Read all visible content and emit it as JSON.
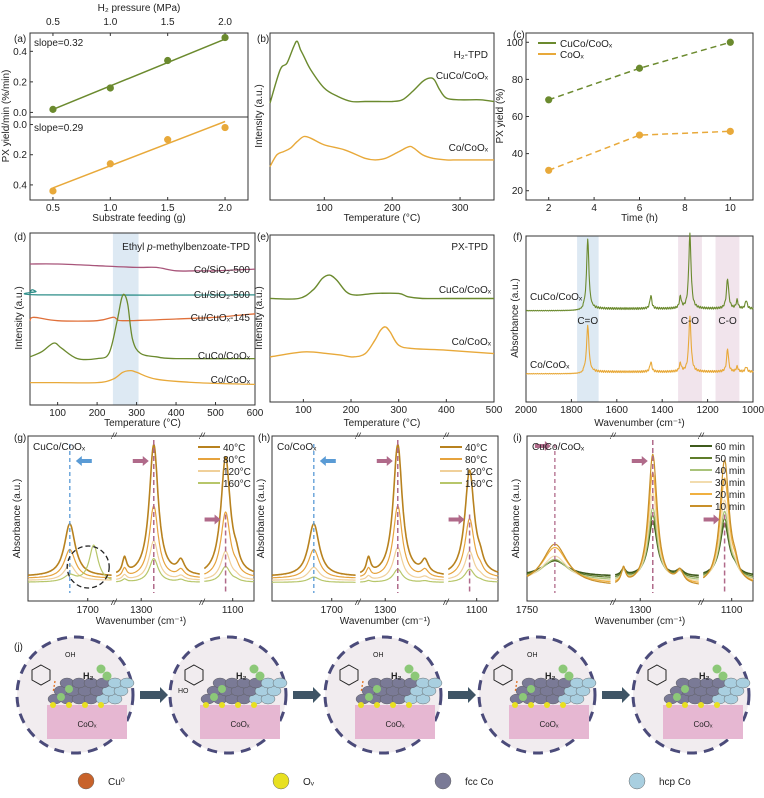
{
  "colors": {
    "olive": "#6b8a2e",
    "orange": "#e8a93a",
    "magenta": "#a8557a",
    "teal": "#2f8f8a",
    "red_orange": "#e0703a",
    "blue_band": "#dde9f3",
    "pink_band": "#f1e4ec",
    "blue_arrow": "#5a9bd5",
    "pink_arrow": "#b06a8a",
    "t40": "#b8821f",
    "t80": "#e6a33e",
    "t120": "#f0d09a",
    "t160": "#b7c66a",
    "m60": "#3f5a1c",
    "m50": "#5f7d2a",
    "m40": "#a9c37a",
    "m30": "#f2dcae",
    "m20": "#f0b040",
    "m10": "#c8902a",
    "coox_pink": "#e6b7d2",
    "circle_bg": "#f1ecef",
    "dash": "#4b4b7a",
    "h2_green": "#8cc878",
    "fcc": "#7a7a96",
    "hcp": "#a9cfe0",
    "cu": "#c8622a",
    "ov": "#e8e020"
  },
  "chart_data": [
    {
      "panel": "(a)",
      "type": "scatter",
      "top_xlabel": "H2 pressure (MPa)",
      "xlabel": "Substrate feeding (g)",
      "ylabel": "PX yield/min (%/min)",
      "x_ticks": [
        "0.5",
        "1.0",
        "1.5",
        "2.0"
      ],
      "upper": {
        "y_ticks": [
          "0.0",
          "0.2",
          "0.4"
        ],
        "ylim": [
          -0.03,
          0.52
        ],
        "annotation": "slope=0.32",
        "x": [
          0.5,
          1.0,
          1.5,
          2.0
        ],
        "y": [
          0.02,
          0.16,
          0.34,
          0.49
        ],
        "fit": [
          [
            0.5,
            0.02
          ],
          [
            2.0,
            0.48
          ]
        ]
      },
      "lower": {
        "y_ticks": [
          "0.0",
          "0.2",
          "0.4"
        ],
        "ylim": [
          0.5,
          -0.05
        ],
        "annotation": "slope=0.29",
        "x": [
          0.5,
          1.0,
          1.5,
          2.0
        ],
        "y": [
          0.44,
          0.26,
          0.1,
          0.02
        ],
        "fit": [
          [
            0.5,
            0.42
          ],
          [
            2.0,
            -0.02
          ]
        ]
      },
      "xlim": [
        0.3,
        2.2
      ]
    },
    {
      "panel": "(b)",
      "type": "line",
      "title": "H2-TPD",
      "xlabel": "Temperature (°C)",
      "ylabel": "Intensity (a.u.)",
      "x_ticks": [
        "100",
        "200",
        "300"
      ],
      "xlim": [
        20,
        350
      ],
      "series": [
        {
          "name": "CuCo/CoOx",
          "x": [
            20,
            35,
            45,
            55,
            60,
            65,
            70,
            80,
            100,
            120,
            140,
            160,
            180,
            200,
            215,
            230,
            245,
            255,
            262,
            270,
            280,
            300,
            330,
            350
          ],
          "y": [
            0.58,
            0.78,
            0.82,
            0.92,
            0.95,
            0.9,
            0.86,
            0.78,
            0.67,
            0.62,
            0.59,
            0.59,
            0.59,
            0.59,
            0.6,
            0.65,
            0.71,
            0.73,
            0.72,
            0.66,
            0.61,
            0.6,
            0.6,
            0.59
          ]
        },
        {
          "name": "Co/CoOx",
          "x": [
            20,
            30,
            40,
            50,
            60,
            70,
            80,
            100,
            130,
            160,
            175,
            190,
            210,
            225,
            232,
            245,
            260,
            280,
            300,
            350
          ],
          "y": [
            0.2,
            0.27,
            0.29,
            0.31,
            0.35,
            0.38,
            0.37,
            0.33,
            0.3,
            0.25,
            0.24,
            0.25,
            0.29,
            0.32,
            0.31,
            0.27,
            0.25,
            0.24,
            0.24,
            0.24
          ]
        }
      ]
    },
    {
      "panel": "(c)",
      "type": "line",
      "xlabel": "Time (h)",
      "ylabel": "PX yield (%)",
      "x_ticks": [
        "2",
        "4",
        "6",
        "8",
        "10"
      ],
      "y_ticks": [
        "20",
        "40",
        "60",
        "80",
        "100"
      ],
      "xlim": [
        1,
        11
      ],
      "ylim": [
        15,
        105
      ],
      "series": [
        {
          "name": "CuCo/CoOx",
          "x": [
            2,
            6,
            10
          ],
          "y": [
            69,
            86,
            100
          ]
        },
        {
          "name": "CoOx",
          "x": [
            2,
            6,
            10
          ],
          "y": [
            31,
            50,
            52
          ]
        }
      ]
    },
    {
      "panel": "(d)",
      "type": "line",
      "title": "Ethyl p-methylbenzoate-TPD",
      "xlabel": "Temperature (°C)",
      "ylabel": "Intensity (a.u.)",
      "x_ticks": [
        "100",
        "200",
        "300",
        "400",
        "500",
        "600"
      ],
      "xlim": [
        30,
        600
      ],
      "shaded_band": [
        240,
        305
      ],
      "series": [
        {
          "name": "Co/SiO2-500",
          "x": [
            30,
            100,
            200,
            300,
            350,
            400,
            450,
            500,
            600
          ],
          "y": [
            0.82,
            0.82,
            0.81,
            0.8,
            0.8,
            0.78,
            0.78,
            0.78,
            0.79
          ]
        },
        {
          "name": "Cu/SiO2-500",
          "x": [
            30,
            35,
            45,
            60,
            600
          ],
          "y": [
            0.65,
            0.67,
            0.66,
            0.64,
            0.64
          ]
        },
        {
          "name": "Cu/CuOx-145",
          "x": [
            30,
            40,
            100,
            200,
            240,
            250,
            270,
            400,
            500,
            600
          ],
          "y": [
            0.49,
            0.51,
            0.49,
            0.49,
            0.51,
            0.5,
            0.49,
            0.5,
            0.51,
            0.53
          ]
        },
        {
          "name": "CuCo/CoOx",
          "x": [
            30,
            60,
            90,
            110,
            150,
            200,
            230,
            250,
            262,
            270,
            278,
            290,
            310,
            350,
            400,
            600
          ],
          "y": [
            0.28,
            0.31,
            0.36,
            0.33,
            0.27,
            0.27,
            0.3,
            0.48,
            0.62,
            0.64,
            0.58,
            0.38,
            0.3,
            0.28,
            0.27,
            0.27
          ]
        },
        {
          "name": "Co/CoOx",
          "x": [
            30,
            100,
            200,
            240,
            265,
            285,
            300,
            350,
            450,
            600
          ],
          "y": [
            0.13,
            0.13,
            0.13,
            0.15,
            0.19,
            0.2,
            0.19,
            0.15,
            0.13,
            0.12
          ]
        }
      ]
    },
    {
      "panel": "(e)",
      "type": "line",
      "title": "PX-TPD",
      "xlabel": "Temperature (°C)",
      "ylabel": "Intensity (a.u.)",
      "x_ticks": [
        "100",
        "200",
        "300",
        "400",
        "500"
      ],
      "xlim": [
        30,
        500
      ],
      "series": [
        {
          "name": "CuCo/CoOx",
          "x": [
            30,
            90,
            120,
            140,
            155,
            170,
            190,
            210,
            250,
            300,
            320,
            350,
            400,
            450,
            500
          ],
          "y": [
            0.62,
            0.62,
            0.67,
            0.74,
            0.76,
            0.73,
            0.66,
            0.64,
            0.65,
            0.65,
            0.63,
            0.62,
            0.62,
            0.62,
            0.62
          ]
        },
        {
          "name": "Co/CoOx",
          "x": [
            30,
            100,
            150,
            180,
            205,
            230,
            250,
            262,
            272,
            282,
            300,
            330,
            400,
            500
          ],
          "y": [
            0.27,
            0.3,
            0.29,
            0.28,
            0.27,
            0.29,
            0.37,
            0.43,
            0.45,
            0.42,
            0.34,
            0.32,
            0.31,
            0.29
          ]
        }
      ]
    },
    {
      "panel": "(f)",
      "type": "line",
      "xlabel": "Wavenumber (cm-1)",
      "ylabel": "Absorbance (a.u.)",
      "x_ticks": [
        "2000",
        "1800",
        "1600",
        "1400",
        "1200",
        "1000"
      ],
      "xlim": [
        2000,
        1000
      ],
      "bands": [
        {
          "label": "C=O",
          "range": [
            1775,
            1680
          ]
        },
        {
          "label": "C-O",
          "range": [
            1330,
            1225
          ]
        },
        {
          "label": "C-O",
          "range": [
            1165,
            1060
          ]
        }
      ],
      "series": [
        {
          "name": "CuCo/CoOx",
          "peaks": [
            [
              1728,
              0.42
            ],
            [
              1278,
              0.45
            ],
            [
              1112,
              0.18
            ],
            [
              1450,
              0.08
            ],
            [
              1320,
              0.07
            ],
            [
              1070,
              0.05
            ],
            [
              1030,
              0.05
            ]
          ],
          "baseline": 0.55
        },
        {
          "name": "Co/CoOx",
          "peaks": [
            [
              1728,
              0.28
            ],
            [
              1278,
              0.33
            ],
            [
              1112,
              0.14
            ],
            [
              1450,
              0.06
            ],
            [
              1320,
              0.05
            ],
            [
              1070,
              0.03
            ],
            [
              1030,
              0.03
            ]
          ],
          "baseline": 0.17
        }
      ]
    },
    {
      "panel": "(g)",
      "type": "line",
      "label": "CuCo/CoOx",
      "xlabel": "Wavenumber (cm-1)",
      "ylabel": "Absorbance (a.u.)",
      "x_ticks": [
        "1700",
        "1300",
        "1100"
      ],
      "legend": [
        "40°C",
        "80°C",
        "120°C",
        "160°C"
      ],
      "peak_heights": {
        "1730": [
          0.9,
          0.5,
          0.22,
          0.12
        ],
        "1270": [
          1.0,
          0.55,
          0.3,
          0.18
        ],
        "1110": [
          0.4,
          0.22,
          0.12,
          0.05
        ]
      },
      "annotation": "dashed circle ~1690 cm-1 (160°C shoulder)"
    },
    {
      "panel": "(h)",
      "type": "line",
      "label": "Co/CoOx",
      "xlabel": "Wavenumber (cm-1)",
      "ylabel": "Absorbance (a.u.)",
      "x_ticks": [
        "1700",
        "1300",
        "1100"
      ],
      "legend": [
        "40°C",
        "80°C",
        "120°C",
        "160°C"
      ],
      "peak_heights": {
        "1730": [
          0.8,
          0.45,
          0.22,
          0.1
        ],
        "1270": [
          1.0,
          0.55,
          0.25,
          0.1
        ],
        "1110": [
          0.4,
          0.22,
          0.1,
          0.04
        ]
      }
    },
    {
      "panel": "(i)",
      "type": "line",
      "label": "CuCo/CoOx",
      "xlabel": "Wavenumber (cm-1)",
      "ylabel": "Absorbance (a.u.)",
      "x_ticks": [
        "1750",
        "1300",
        "1100"
      ],
      "legend": [
        "60 min",
        "50 min",
        "40 min",
        "30 min",
        "20 min",
        "10 min"
      ],
      "peak_heights": {
        "1730": [
          0.4,
          0.45,
          0.52,
          0.62,
          0.8,
          0.95
        ],
        "1270": [
          0.42,
          0.48,
          0.55,
          0.68,
          0.85,
          1.0
        ],
        "1110": [
          0.12,
          0.14,
          0.16,
          0.2,
          0.28,
          0.32
        ]
      }
    }
  ],
  "panel_labels": {
    "a": "(a)",
    "b": "(b)",
    "c": "(c)",
    "d": "(d)",
    "e": "(e)",
    "f": "(f)",
    "g": "(g)",
    "h": "(h)",
    "i": "(i)",
    "j": "(j)"
  },
  "text": {
    "a_top_xlabel": "H₂ pressure (MPa)",
    "a_xlabel": "Substrate feeding (g)",
    "a_ylabel": "PX yield/min (%/min)",
    "a_slope_upper": "slope=0.32",
    "a_slope_lower": "slope=0.29",
    "b_title": "H₂-TPD",
    "b_s1": "CuCo/CoOₓ",
    "b_s2": "Co/CoOₓ",
    "temp_label": "Temperature (°C)",
    "intensity": "Intensity (a.u.)",
    "c_ylabel": "PX yield (%)",
    "c_xlabel": "Time (h)",
    "c_leg1": "CuCo/CoOₓ",
    "c_leg2": "CoOₓ",
    "d_title": "Ethyl p-methylbenzoate-TPD",
    "d_title_pre": "Ethyl ",
    "d_title_it": "p",
    "d_title_post": "-methylbenzoate-TPD",
    "d_s1": "Co/SiO₂-500",
    "d_s2": "Cu/SiO₂-500",
    "d_s3": "Cu/CuOₓ-145",
    "d_s4": "CuCo/CoOₓ",
    "d_s5": "Co/CoOₓ",
    "e_title": "PX-TPD",
    "e_s1": "CuCo/CoOₓ",
    "e_s2": "Co/CoOₓ",
    "f_s1": "CuCo/CoOₓ",
    "f_s2": "Co/CoOₓ",
    "f_band1": "C=O",
    "f_band2": "C-O",
    "f_band3": "C-O",
    "wavenumber": "Wavenumber (cm⁻¹)",
    "absorbance": "Absorbance (a.u.)",
    "g_label": "CuCo/CoOₓ",
    "h_label": "Co/CoOₓ",
    "i_label": "CuCo/CoOₓ",
    "break_mark": "//",
    "coox": "CoOₓ",
    "h2": "H₂",
    "oh": "OH",
    "ho": "HO",
    "legend_cu": "Cu⁰",
    "legend_ov": "Oᵥ",
    "legend_fcc": "fcc Co",
    "legend_hcp": "hcp Co"
  }
}
